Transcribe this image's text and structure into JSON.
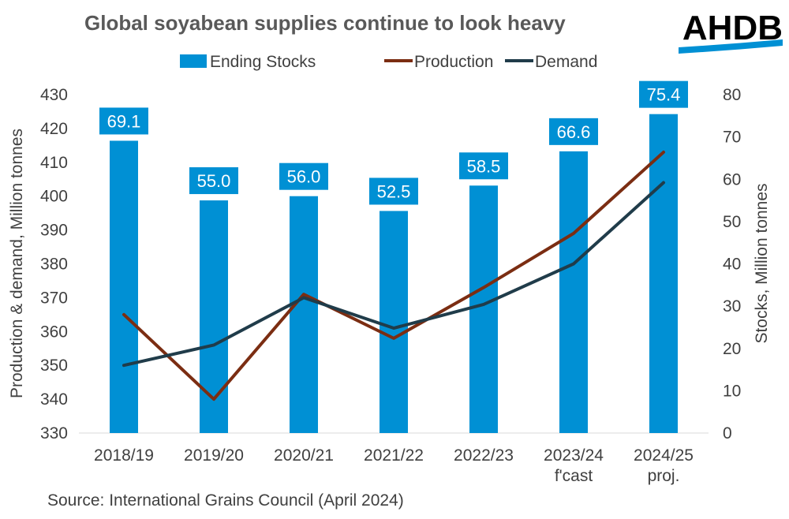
{
  "chart_data": {
    "type": "bar+line",
    "title": "Global soyabean supplies continue to look heavy",
    "categories": [
      [
        "2018/19"
      ],
      [
        "2019/20"
      ],
      [
        "2020/21"
      ],
      [
        "2021/22"
      ],
      [
        "2022/23"
      ],
      [
        "2023/24",
        "f'cast"
      ],
      [
        "2024/25",
        "proj."
      ]
    ],
    "series": [
      {
        "name": "Ending Stocks",
        "type": "bar",
        "axis": "right",
        "color": "#0090D4",
        "values": [
          69.1,
          55.0,
          56.0,
          52.5,
          58.5,
          66.6,
          75.4
        ],
        "labels": [
          "69.1",
          "55.0",
          "56.0",
          "52.5",
          "58.5",
          "66.6",
          "75.4"
        ]
      },
      {
        "name": "Production",
        "type": "line",
        "axis": "left",
        "color": "#7B2D12",
        "values": [
          365,
          340,
          371,
          358,
          373,
          389,
          413
        ]
      },
      {
        "name": "Demand",
        "type": "line",
        "axis": "left",
        "color": "#203C4A",
        "values": [
          350,
          356,
          370,
          361,
          368,
          380,
          404
        ]
      }
    ],
    "y_left": {
      "label": "Production & demand, Million tonnes",
      "min": 330,
      "max": 430,
      "step": 10
    },
    "y_right": {
      "label": "Stocks, Million tonnes",
      "min": 0,
      "max": 80,
      "step": 10
    },
    "legend_position": "top",
    "grid": false
  },
  "source": "Source: International Grains Council (April 2024)",
  "logo": {
    "text": "AHDB",
    "color": "#0090D4"
  }
}
